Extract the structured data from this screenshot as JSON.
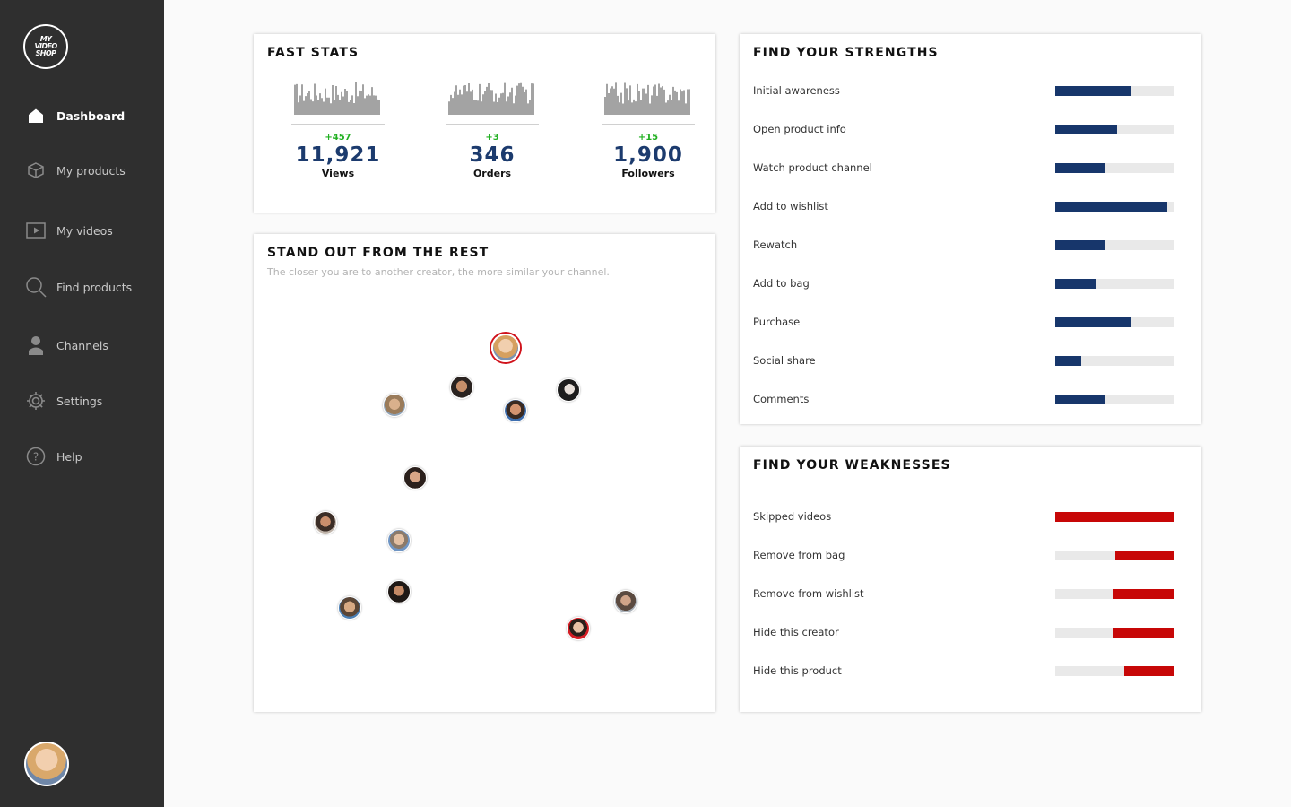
{
  "brand": {
    "line1": "MY",
    "line2": "VIDEO",
    "line3": "SHOP"
  },
  "nav": [
    {
      "label": "Dashboard",
      "icon": "home-icon",
      "active": true
    },
    {
      "label": "My products",
      "icon": "box-icon"
    },
    {
      "label": "My videos",
      "icon": "video-icon"
    },
    {
      "label": "Find products",
      "icon": "search-icon"
    },
    {
      "label": "Channels",
      "icon": "user-icon"
    },
    {
      "label": "Settings",
      "icon": "gear-icon"
    },
    {
      "label": "Help",
      "icon": "help-icon"
    }
  ],
  "fast_stats": {
    "title": "FAST STATS",
    "items": [
      {
        "delta": "+457",
        "value": "11,921",
        "label": "Views"
      },
      {
        "delta": "+3",
        "value": "346",
        "label": "Orders"
      },
      {
        "delta": "+15",
        "value": "1,900",
        "label": "Followers"
      }
    ]
  },
  "stand_out": {
    "title": "STAND OUT FROM THE REST",
    "subtitle": "The closer you are to another creator, the more similar your channel."
  },
  "strengths": {
    "title": "FIND YOUR STRENGTHS",
    "items": [
      {
        "label": "Initial awareness",
        "value": 0.63
      },
      {
        "label": "Open product info",
        "value": 0.52
      },
      {
        "label": "Watch product channel",
        "value": 0.42
      },
      {
        "label": "Add to wishlist",
        "value": 0.94
      },
      {
        "label": "Rewatch",
        "value": 0.42
      },
      {
        "label": "Add to bag",
        "value": 0.34
      },
      {
        "label": "Purchase",
        "value": 0.63
      },
      {
        "label": "Social share",
        "value": 0.22
      },
      {
        "label": "Comments",
        "value": 0.42
      }
    ]
  },
  "weaknesses": {
    "title": "FIND YOUR WEAKNESSES",
    "items": [
      {
        "label": "Skipped videos",
        "value": 1.0
      },
      {
        "label": "Remove from bag",
        "value": 0.5
      },
      {
        "label": "Remove from wishlist",
        "value": 0.52
      },
      {
        "label": "Hide this creator",
        "value": 0.52
      },
      {
        "label": "Hide this product",
        "value": 0.42
      }
    ]
  },
  "colors": {
    "strength": "#17366b",
    "weakness": "#c70707",
    "delta": "#21b021",
    "sidebar": "#2f2f2f"
  }
}
